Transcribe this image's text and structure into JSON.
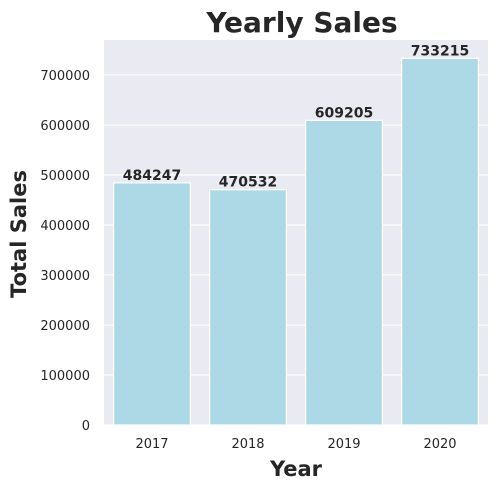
{
  "chart_data": {
    "type": "bar",
    "title": "Yearly Sales",
    "xlabel": "Year",
    "ylabel": "Total Sales",
    "categories": [
      "2017",
      "2018",
      "2019",
      "2020"
    ],
    "values": [
      484247,
      470532,
      609205,
      733215
    ],
    "data_labels": [
      "484247",
      "470532",
      "609205",
      "733215"
    ],
    "ylim": [
      0,
      770000
    ],
    "yticks": [
      0,
      100000,
      200000,
      300000,
      400000,
      500000,
      600000,
      700000
    ],
    "ytick_labels": [
      "0",
      "100000",
      "200000",
      "300000",
      "400000",
      "500000",
      "600000",
      "700000"
    ],
    "grid": true,
    "legend": "none",
    "colors": {
      "bar": "#add8e6",
      "plot_background": "#eaeaf2",
      "grid": "#ffffff",
      "text": "#262626"
    }
  }
}
